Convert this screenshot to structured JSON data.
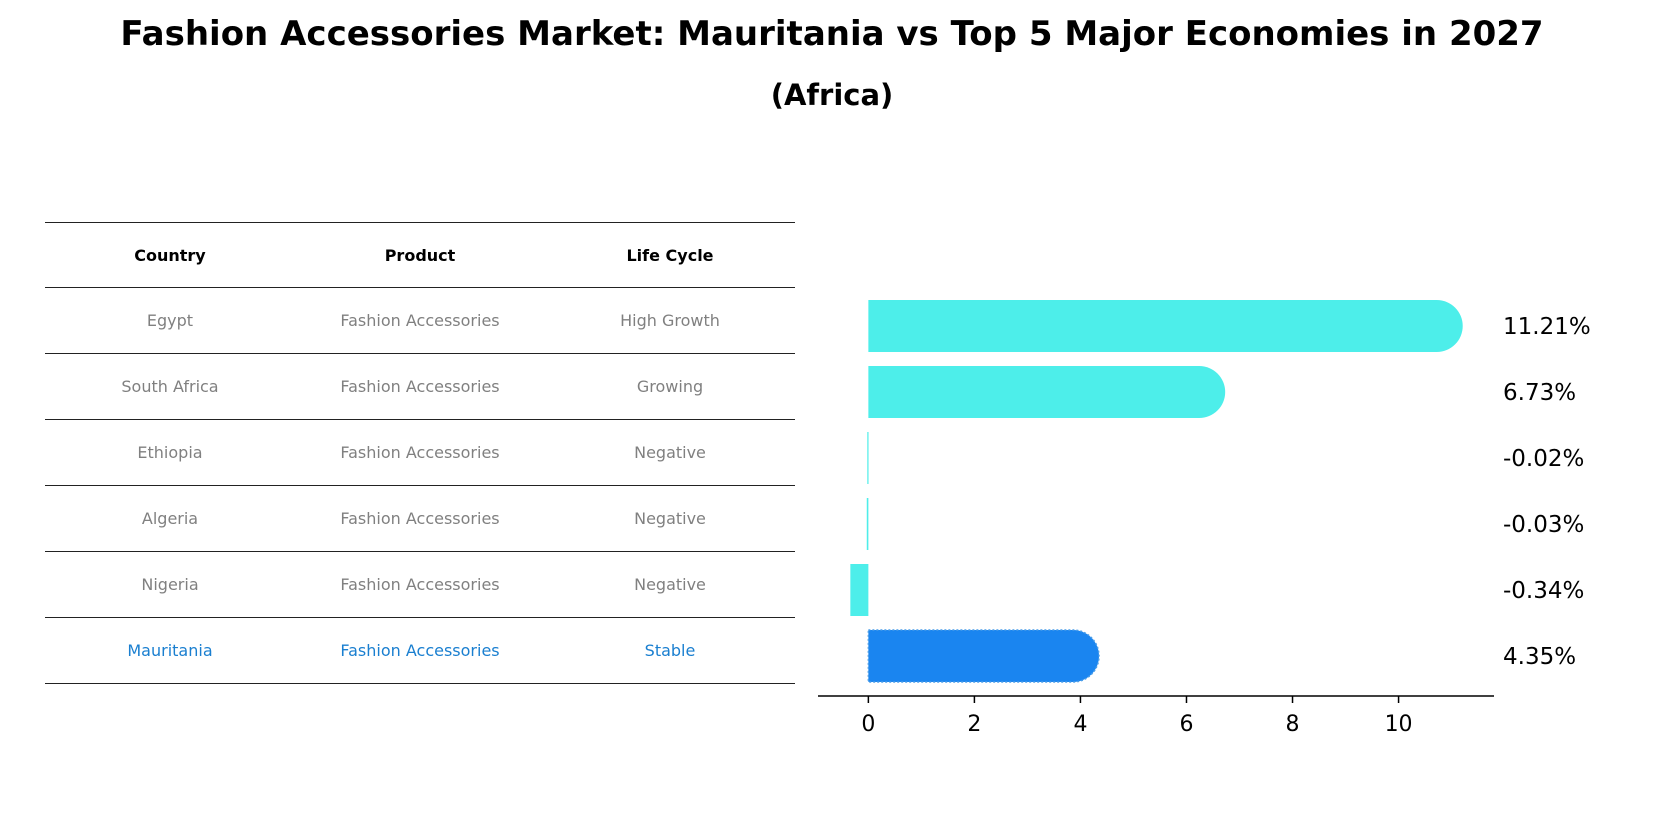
{
  "title": "Fashion Accessories Market: Mauritania vs Top 5 Major Economies in 2027",
  "subtitle": "(Africa)",
  "table": {
    "headers": [
      "Country",
      "Product",
      "Life Cycle"
    ],
    "rows": [
      {
        "country": "Egypt",
        "product": "Fashion Accessories",
        "life_cycle": "High Growth"
      },
      {
        "country": "South Africa",
        "product": "Fashion Accessories",
        "life_cycle": "Growing"
      },
      {
        "country": "Ethiopia",
        "product": "Fashion Accessories",
        "life_cycle": "Negative"
      },
      {
        "country": "Algeria",
        "product": "Fashion Accessories",
        "life_cycle": "Negative"
      },
      {
        "country": "Nigeria",
        "product": "Fashion Accessories",
        "life_cycle": "Negative"
      },
      {
        "country": "Mauritania",
        "product": "Fashion Accessories",
        "life_cycle": "Stable"
      }
    ]
  },
  "chart_data": {
    "type": "bar",
    "orientation": "horizontal",
    "categories": [
      "Egypt",
      "South Africa",
      "Ethiopia",
      "Algeria",
      "Nigeria",
      "Mauritania"
    ],
    "values": [
      11.21,
      6.73,
      -0.02,
      -0.03,
      -0.34,
      4.35
    ],
    "value_labels": [
      "11.21%",
      "6.73%",
      "-0.02%",
      "-0.03%",
      "-0.34%",
      "4.35%"
    ],
    "highlight": "Mauritania",
    "xlim": [
      -0.95,
      11.8
    ],
    "xticks": [
      0,
      2,
      4,
      6,
      8,
      10
    ],
    "colors": {
      "default": "#4deeea",
      "highlight": "#1a85f0",
      "table_highlight_text": "#1a7fd0",
      "table_text": "#808080"
    }
  }
}
